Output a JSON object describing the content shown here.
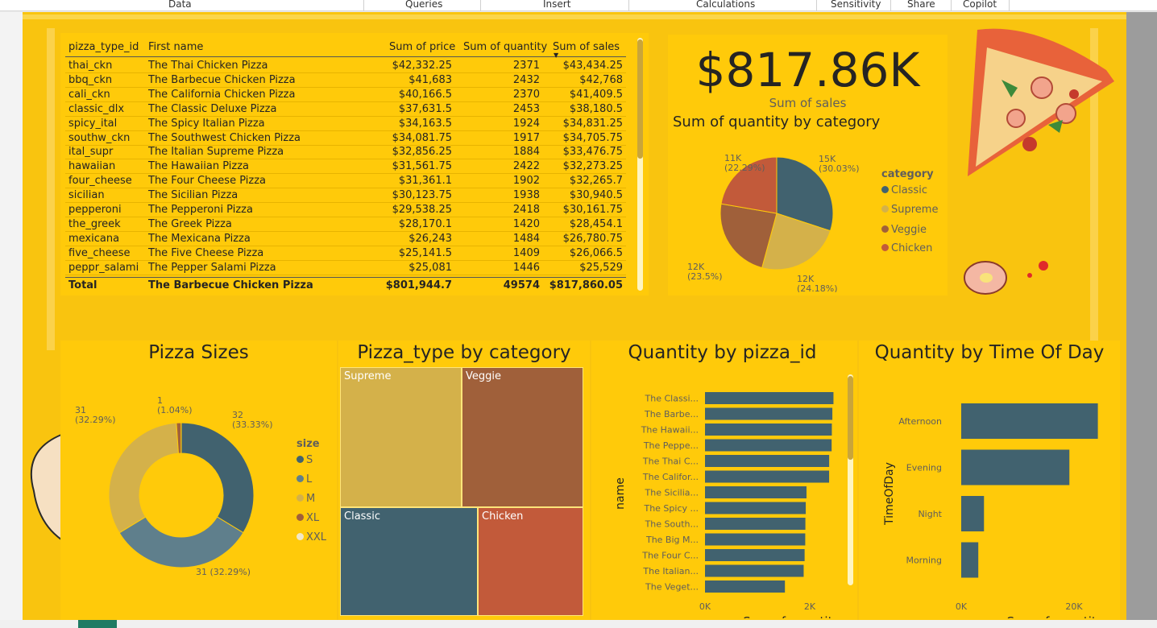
{
  "ribbon": {
    "items": [
      "Data",
      "Queries",
      "Insert",
      "Calculations",
      "Sensitivity",
      "Share",
      "Copilot"
    ]
  },
  "colors": {
    "canvas": "#f9c40f",
    "panel": "#ffca0a",
    "classic": "#41626f",
    "supreme": "#d4b14a",
    "veggie": "#a0603a",
    "chicken": "#c25a3a",
    "size_L": "#5f7f8c",
    "size_XXL": "#f2e8c8"
  },
  "table": {
    "headers": [
      "pizza_type_id",
      "First name",
      "Sum of price",
      "Sum of quantity",
      "Sum of sales"
    ],
    "sort_column": "Sum of sales",
    "rows": [
      {
        "id": "thai_ckn",
        "name": "The Thai Chicken Pizza",
        "price": "$42,332.25",
        "qty": "2371",
        "sales": "$43,434.25"
      },
      {
        "id": "bbq_ckn",
        "name": "The Barbecue Chicken Pizza",
        "price": "$41,683",
        "qty": "2432",
        "sales": "$42,768"
      },
      {
        "id": "cali_ckn",
        "name": "The California Chicken Pizza",
        "price": "$40,166.5",
        "qty": "2370",
        "sales": "$41,409.5"
      },
      {
        "id": "classic_dlx",
        "name": "The Classic Deluxe Pizza",
        "price": "$37,631.5",
        "qty": "2453",
        "sales": "$38,180.5"
      },
      {
        "id": "spicy_ital",
        "name": "The Spicy Italian Pizza",
        "price": "$34,163.5",
        "qty": "1924",
        "sales": "$34,831.25"
      },
      {
        "id": "southw_ckn",
        "name": "The Southwest Chicken Pizza",
        "price": "$34,081.75",
        "qty": "1917",
        "sales": "$34,705.75"
      },
      {
        "id": "ital_supr",
        "name": "The Italian Supreme Pizza",
        "price": "$32,856.25",
        "qty": "1884",
        "sales": "$33,476.75"
      },
      {
        "id": "hawaiian",
        "name": "The Hawaiian Pizza",
        "price": "$31,561.75",
        "qty": "2422",
        "sales": "$32,273.25"
      },
      {
        "id": "four_cheese",
        "name": "The Four Cheese Pizza",
        "price": "$31,361.1",
        "qty": "1902",
        "sales": "$32,265.7"
      },
      {
        "id": "sicilian",
        "name": "The Sicilian Pizza",
        "price": "$30,123.75",
        "qty": "1938",
        "sales": "$30,940.5"
      },
      {
        "id": "pepperoni",
        "name": "The Pepperoni Pizza",
        "price": "$29,538.25",
        "qty": "2418",
        "sales": "$30,161.75"
      },
      {
        "id": "the_greek",
        "name": "The Greek Pizza",
        "price": "$28,170.1",
        "qty": "1420",
        "sales": "$28,454.1"
      },
      {
        "id": "mexicana",
        "name": "The Mexicana Pizza",
        "price": "$26,243",
        "qty": "1484",
        "sales": "$26,780.75"
      },
      {
        "id": "five_cheese",
        "name": "The Five Cheese Pizza",
        "price": "$25,141.5",
        "qty": "1409",
        "sales": "$26,066.5"
      },
      {
        "id": "peppr_salami",
        "name": "The Pepper Salami Pizza",
        "price": "$25,081",
        "qty": "1446",
        "sales": "$25,529"
      }
    ],
    "total": {
      "id": "Total",
      "name": "The Barbecue Chicken Pizza",
      "price": "$801,944.7",
      "qty": "49574",
      "sales": "$817,860.05"
    }
  },
  "kpi": {
    "value": "$817.86K",
    "label": "Sum of sales"
  },
  "chart_data": [
    {
      "type": "pie",
      "title": "Sum of quantity by category",
      "legend_title": "category",
      "categories": [
        "Classic",
        "Supreme",
        "Veggie",
        "Chicken"
      ],
      "values": [
        15000,
        12000,
        12000,
        11000
      ],
      "percent": [
        30.03,
        24.18,
        23.5,
        22.29
      ],
      "data_labels": [
        "15K\n(30.03%)",
        "12K\n(24.18%)",
        "12K\n(23.5%)",
        "11K\n(22.29%)"
      ],
      "legend_position": "right"
    },
    {
      "type": "pie",
      "title": "Pizza Sizes",
      "legend_title": "size",
      "categories": [
        "S",
        "L",
        "M",
        "XL",
        "XXL"
      ],
      "values": [
        32,
        31,
        31,
        1,
        0.03
      ],
      "percent": [
        33.33,
        32.29,
        32.29,
        1.04,
        0.03
      ],
      "data_labels": [
        "32\n(33.33%)",
        "31 (32.29%)",
        "31\n(32.29%)",
        "1\n(1.04%)",
        ""
      ],
      "legend_position": "right"
    },
    {
      "type": "treemap",
      "title": "Pizza_type by category",
      "categories": [
        "Supreme",
        "Veggie",
        "Classic",
        "Chicken"
      ],
      "values": [
        12000,
        12000,
        15000,
        11000
      ]
    },
    {
      "type": "bar",
      "orientation": "horizontal",
      "title": "Quantity by pizza_id",
      "xlabel": "Sum of quantity",
      "ylabel": "name",
      "categories": [
        "The Classi...",
        "The Barbe...",
        "The Hawaii...",
        "The Peppe...",
        "The Thai C...",
        "The Califor...",
        "The Sicilia...",
        "The Spicy ...",
        "The South...",
        "The Big M...",
        "The Four C...",
        "The Italian...",
        "The Veget..."
      ],
      "values": [
        2453,
        2432,
        2422,
        2418,
        2371,
        2370,
        1938,
        1924,
        1917,
        1914,
        1902,
        1884,
        1526
      ],
      "xticks": [
        "0K",
        "2K"
      ],
      "xlim": [
        0,
        3000
      ]
    },
    {
      "type": "bar",
      "orientation": "horizontal",
      "title": "Quantity by Time Of Day",
      "xlabel": "Sum of quantity",
      "ylabel": "TimeOfDay",
      "categories": [
        "Afternoon",
        "Evening",
        "Night",
        "Morning"
      ],
      "values": [
        24000,
        19000,
        4000,
        3000
      ],
      "xticks": [
        "0K",
        "20K"
      ],
      "xlim": [
        0,
        30000
      ]
    }
  ]
}
